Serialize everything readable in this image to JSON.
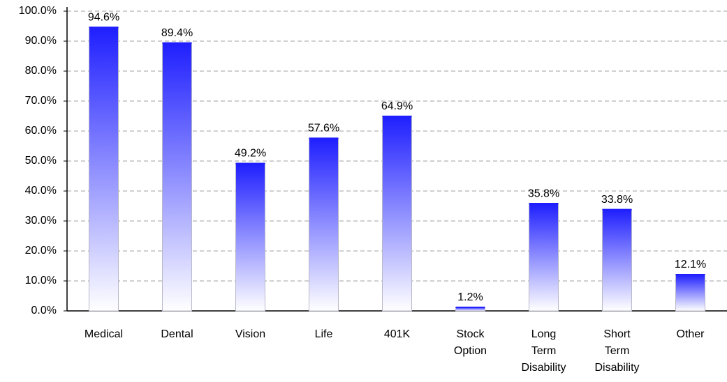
{
  "chart_data": {
    "type": "bar",
    "categories": [
      "Medical",
      "Dental",
      "Vision",
      "Life",
      "401K",
      "Stock Option",
      "Long Term Disability",
      "Short Term Disability",
      "Other"
    ],
    "values": [
      94.6,
      89.4,
      49.2,
      57.6,
      64.9,
      1.2,
      35.8,
      33.8,
      12.1
    ],
    "value_labels": [
      "94.6%",
      "89.4%",
      "49.2%",
      "57.6%",
      "64.9%",
      "1.2%",
      "35.8%",
      "33.8%",
      "12.1%"
    ],
    "color": "#1f1fff",
    "ylim": [
      0,
      100
    ],
    "yticks": [
      {
        "value": 0,
        "label": "0.0%"
      },
      {
        "value": 10,
        "label": "10.0%"
      },
      {
        "value": 20,
        "label": "20.0%"
      },
      {
        "value": 30,
        "label": "30.0%"
      },
      {
        "value": 40,
        "label": "40.0%"
      },
      {
        "value": 50,
        "label": "50.0%"
      },
      {
        "value": 60,
        "label": "60.0%"
      },
      {
        "value": 70,
        "label": "70.0%"
      },
      {
        "value": 80,
        "label": "80.0%"
      },
      {
        "value": 90,
        "label": "90.0%"
      },
      {
        "value": 100,
        "label": "100.0%"
      }
    ],
    "grid": true
  }
}
